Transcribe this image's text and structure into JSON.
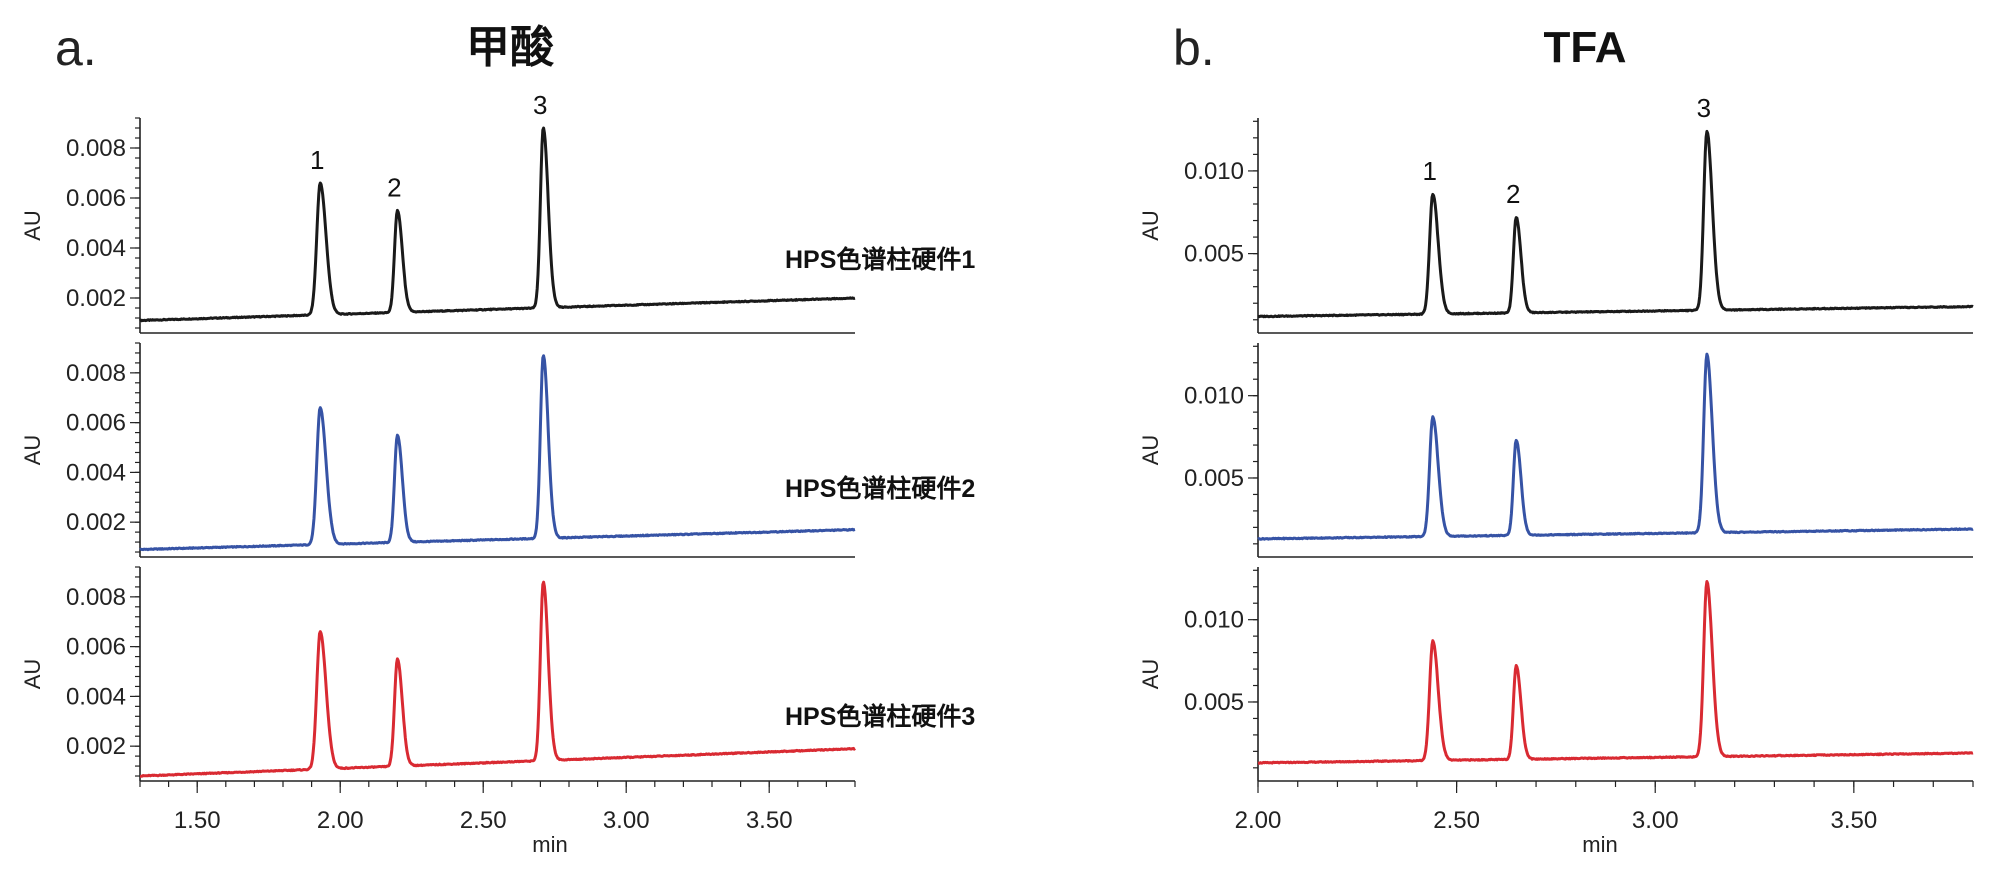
{
  "chart_data": [
    {
      "panel_letter": "a.",
      "title": "甲酸",
      "type": "line",
      "xlabel": "min",
      "xlim": [
        1.3,
        3.8
      ],
      "x_ticks": [
        "1.50",
        "2.00",
        "2.50",
        "3.00",
        "3.50"
      ],
      "x_tick_values": [
        1.5,
        2.0,
        2.5,
        3.0,
        3.5
      ],
      "peak_labels": [
        "1",
        "2",
        "3"
      ],
      "peaks": [
        {
          "rt": 1.93,
          "width": 0.012
        },
        {
          "rt": 2.2,
          "width": 0.01
        },
        {
          "rt": 2.71,
          "width": 0.01
        }
      ],
      "traces": [
        {
          "name": "HPS色谱柱硬件1",
          "color": "#1a1a1a",
          "ylabel": "AU",
          "ylim": [
            0.0006,
            0.0092
          ],
          "y_ticks": [
            "0.002",
            "0.004",
            "0.006",
            "0.008"
          ],
          "y_tick_values": [
            0.002,
            0.004,
            0.006,
            0.008
          ],
          "baseline_start": 0.0011,
          "baseline_end": 0.002,
          "peak_heights": [
            0.0066,
            0.0055,
            0.0088
          ]
        },
        {
          "name": "HPS色谱柱硬件2",
          "color": "#3653a5",
          "ylabel": "AU",
          "ylim": [
            0.0006,
            0.0092
          ],
          "y_ticks": [
            "0.002",
            "0.004",
            "0.006",
            "0.008"
          ],
          "y_tick_values": [
            0.002,
            0.004,
            0.006,
            0.008
          ],
          "baseline_start": 0.0009,
          "baseline_end": 0.0017,
          "peak_heights": [
            0.0066,
            0.0055,
            0.0087
          ]
        },
        {
          "name": "HPS色谱柱硬件3",
          "color": "#d92a32",
          "ylabel": "AU",
          "ylim": [
            0.0006,
            0.0092
          ],
          "y_ticks": [
            "0.002",
            "0.004",
            "0.006",
            "0.008"
          ],
          "y_tick_values": [
            0.002,
            0.004,
            0.006,
            0.008
          ],
          "baseline_start": 0.0008,
          "baseline_end": 0.0019,
          "peak_heights": [
            0.0066,
            0.0055,
            0.0086
          ]
        }
      ]
    },
    {
      "panel_letter": "b.",
      "title": "TFA",
      "type": "line",
      "xlabel": "min",
      "xlim": [
        2.0,
        3.8
      ],
      "x_ticks": [
        "2.00",
        "2.50",
        "3.00",
        "3.50"
      ],
      "x_tick_values": [
        2.0,
        2.5,
        3.0,
        3.5
      ],
      "peak_labels": [
        "1",
        "2",
        "3"
      ],
      "peaks": [
        {
          "rt": 2.44,
          "width": 0.008
        },
        {
          "rt": 2.65,
          "width": 0.007
        },
        {
          "rt": 3.13,
          "width": 0.008
        }
      ],
      "traces": [
        {
          "name": "",
          "color": "#1a1a1a",
          "ylabel": "AU",
          "ylim": [
            0.0002,
            0.0132
          ],
          "y_ticks": [
            "0.005",
            "0.010"
          ],
          "y_tick_values": [
            0.005,
            0.01
          ],
          "baseline_start": 0.0012,
          "baseline_end": 0.0018,
          "peak_heights": [
            0.0086,
            0.0072,
            0.0124
          ]
        },
        {
          "name": "",
          "color": "#3653a5",
          "ylabel": "AU",
          "ylim": [
            0.0002,
            0.0132
          ],
          "y_ticks": [
            "0.005",
            "0.010"
          ],
          "y_tick_values": [
            0.005,
            0.01
          ],
          "baseline_start": 0.0013,
          "baseline_end": 0.0019,
          "peak_heights": [
            0.0087,
            0.0073,
            0.0125
          ]
        },
        {
          "name": "",
          "color": "#d92a32",
          "ylabel": "AU",
          "ylim": [
            0.0002,
            0.0132
          ],
          "y_ticks": [
            "0.005",
            "0.010"
          ],
          "y_tick_values": [
            0.005,
            0.01
          ],
          "baseline_start": 0.0013,
          "baseline_end": 0.0019,
          "peak_heights": [
            0.0087,
            0.0072,
            0.0123
          ]
        }
      ]
    }
  ]
}
